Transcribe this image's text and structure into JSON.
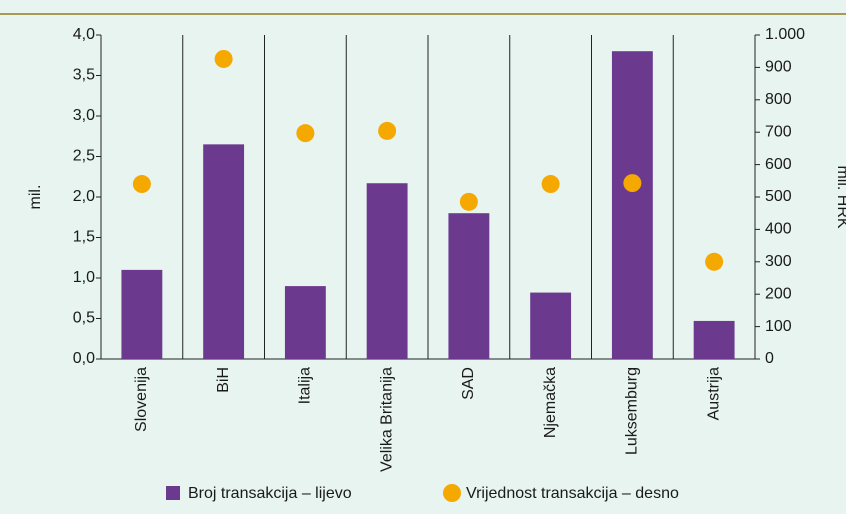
{
  "chart_data": {
    "type": "bar",
    "categories": [
      "Slovenija",
      "BiH",
      "Italija",
      "Velika Britanija",
      "SAD",
      "Njemačka",
      "Luksemburg",
      "Austrija"
    ],
    "series": [
      {
        "name": "Broj transakcija – lijevo",
        "type": "bar",
        "axis": "y",
        "color": "#6b3a8e",
        "values": [
          1.1,
          2.65,
          0.9,
          2.17,
          1.8,
          0.82,
          3.8,
          0.47
        ]
      },
      {
        "name": "Vrijednost transakcija – desno",
        "type": "scatter",
        "axis": "y2",
        "color": "#f5a800",
        "values": [
          540,
          926,
          697,
          704,
          485,
          540,
          543,
          300
        ]
      }
    ],
    "ylabel": "mil.",
    "y2label": "mil. HRK",
    "ylim": [
      0,
      4
    ],
    "yticks": [
      {
        "value": 0,
        "label": "0,0"
      },
      {
        "value": 0.5,
        "label": "0,5"
      },
      {
        "value": 1,
        "label": "1,0"
      },
      {
        "value": 1.5,
        "label": "1,5"
      },
      {
        "value": 2,
        "label": "2,0"
      },
      {
        "value": 2.5,
        "label": "2,5"
      },
      {
        "value": 3,
        "label": "3,0"
      },
      {
        "value": 3.5,
        "label": "3,5"
      },
      {
        "value": 4,
        "label": "4,0"
      }
    ],
    "y2lim": [
      0,
      1000
    ],
    "y2ticks": [
      0,
      100,
      200,
      300,
      400,
      500,
      600,
      700,
      800,
      900,
      {
        "value": 1000,
        "label": "1.000"
      }
    ],
    "legend": "bottom"
  }
}
